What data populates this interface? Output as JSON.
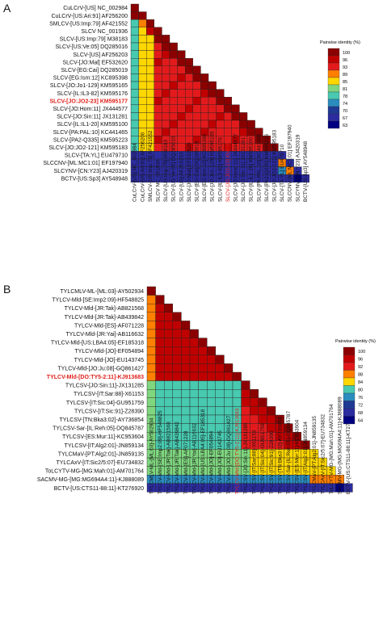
{
  "panels": [
    {
      "label": "A",
      "legend_title": "Pairwise identity (%)",
      "legend_ticks": [
        "100",
        "96",
        "93",
        "89",
        "85",
        "81",
        "78",
        "74",
        "70",
        "67",
        "63"
      ],
      "highlight_color": "#e0201a",
      "highlight_index": 12,
      "isolates": [
        "CuLCrV-[US] NC_002984",
        "CuLCrV-[US:Ari:91] AF256200",
        "SMLCV-[US:Imp:79] AF421552",
        "SLCV NC_001936",
        "SLCV-[US:Imp:79] M38183",
        "SLCV-[US:Ve:05] DQ285016",
        "SLCV-[US] AF256203",
        "SLCV-[JO:Mal] EF532620",
        "SLCV-[EG:Cai] DQ285019",
        "SLCV-[EG:Ism:12] KC895398",
        "SLCV-[JO:Jo1-129] KM595165",
        "SLCV-[IL:IL3-82] KM595176",
        "SLCV-[JO:JO2-23] KM595177",
        "SLCV-[JO:Hom:11] JX444577",
        "SLCV-[JO:Sin:11] JX131281",
        "SLCV-[IL:IL1-20] KM595100",
        "SLCV-[PA:PAL:10] KC441465",
        "SLCV-[PA2-Q335] KM595223",
        "SLCV-[JO:JO2-121] KM595183",
        "SLCV-[TA:YL] EU479710",
        "SLCCNV-[ML:MC1:01] EF197940",
        "SLCYNV-[CN:Y23] AJ420319",
        "BCTV-[US:Sp3] AY548948"
      ],
      "bottom_labels": [
        "CuLCrV-[US] NC_002984",
        "CuLCrV-[US:Ari:91] AF256200",
        "SMLCV-[US:Imp:79] AF421552",
        "SLCV NC_001936",
        "SLCV-[US:Imp:79] M38183",
        "SLCV-[US:Ve:05] DQ285016",
        "SLCV-[US] AF256203",
        "SLCV-[JO:Mal] EF532620",
        "SLCV-[EG:Cai] DQ285019",
        "SLCV-[EG:Ism:12] KC895398",
        "SLCV-[JO:Jo1-129] KM595165",
        "SLCV-[IL:IL3-82] KM595176",
        "SLCV-[JO:JO2-23] KM595177",
        "SLCV-[JO:Hom:11] JX444577",
        "SLCV-[JO:Sin:11] JX131281",
        "SLCV-[IL:IL1-20] KM595100",
        "SLCV-[PA:PAL:10] KC441465",
        "SLCV-[PA2-Q335] KM595223",
        "SLCV-[JO:JO2-121] KM595183",
        "SLCV-[TA:YL] EU479710",
        "SLCCNV-[ML:MC1:01] EF197940",
        "SLCYNV-[CN:Y23] AJ420319",
        "BCTV-[US:Sp3] AY548948"
      ]
    },
    {
      "label": "B",
      "legend_title": "Pairwise identity (%)",
      "legend_ticks": [
        "100",
        "96",
        "92",
        "88",
        "84",
        "80",
        "76",
        "72",
        "68",
        "64"
      ],
      "highlight_color": "#e0201a",
      "highlight_index": 10,
      "isolates": [
        "TYLCMLV-ML-[ML:03]-AY502934",
        "TYLCV-Mld-[SE:Imp2:09]-HF548825",
        "TYLCV-Mld-[JR:Tak]-AB821568",
        "TYLCV-Mld-[JR:Tak]-AB439842",
        "TYLCV-Mld-[ES]-AF071228",
        "TYLCV-Mld-[JR:Yai]-AB116632",
        "TYLCV-Mld-[US:LBA4:05]-EF185318",
        "TYLCV-Mld-[JO]-EF054894",
        "TYLCV-Mld-[JO]-EU143745",
        "TYLCV-Mld-[JO:Ju:08]-GQ861427",
        "TYLCV-Mld-[DO:TY5-2:11]-KJ913683",
        "TYLCSV-[JO:Sin:11]-JX131285",
        "TYLCSV-[IT:Sar:88]-X61153",
        "TYLCSV-[IT:Sic:04]-GU951759",
        "TYLCSV-[IT:Sic:91]-Z28390",
        "TYLCSV-[TN:Bka3:02]-AY736854",
        "TYLCSV-Sar-[IL:Reh:05]-DQ845787",
        "TYLCSV-[ES:Mur:11]-KC953604",
        "TYLCSV-[IT:Alg2:01]-JN859134",
        "TYLCMaV-[PT:Alg2:01]-JN859135",
        "TYLCAxV-[IT:Sic2/5:07]-EU734832",
        "ToLCYTV-MG-[MG:Mah:01]-AM701764",
        "SACMV-MG-[MG:MG694A4:11]-KJ888089",
        "BCTV-[US:CTS11-88:11]-KT276920"
      ],
      "bottom_labels": [
        "TYLCMLV-ML-[ML:03]-AY502934",
        "TYLCV-Mld-[SE:Imp2:09]-HF548825",
        "TYLCV-Mld-[JR:Tak]-AB821568",
        "TYLCV-Mld-[JR:Tak]-AB439842",
        "TYLCV-Mld-[ES]-AF071228",
        "TYLCV-Mld-[JR:Yai]-AB116632",
        "TYLCV-Mld-[US:LBA4:05]-EF185318",
        "TYLCV-Mld-[JO]-EF054894",
        "TYLCV-Mld-[JO]-EU143745",
        "TYLCV-Mld-[JO:Ju:08]-GQ861427",
        "TYLCV-Mld-[DO:TY5-2:11]-KJ913683",
        "TYLCSV-[JO:Sin:11]-JX131285",
        "TYLCSV-[IT:Sar:88]-X61153",
        "TYLCSV-[IT:Sic:04]-GU951759",
        "TYLCSV-[IT:Sic:91]-Z28390",
        "TYLCSV-[TN:Bka3:02]-AY736854",
        "TYLCSV-Sar-[IL:Reh:05]-DQ845787",
        "TYLCSV-[ES:Mur:11]-KC953604",
        "TYLCSV-[IT:Alg2:01]-JN859134",
        "TYLCMaV-[PT:Alg2:01]-JN859135",
        "TYLCAxV-[IT:Sic2/5:07]-EU734832",
        "ToLCYTV-MG-[MG:Mah:01]-AM701764",
        "SACMV-MG-[MG:MG694A4:11]-KJ888089",
        "BCTV-[US:CTS11-88:11]-KT276920"
      ]
    }
  ],
  "palette": [
    "#8b0000",
    "#c00000",
    "#e31a1c",
    "#ff7f00",
    "#ffd700",
    "#7fd67f",
    "#48c9b0",
    "#2b8cbe",
    "#1f3a93",
    "#2c2ca0",
    "#000080"
  ]
}
